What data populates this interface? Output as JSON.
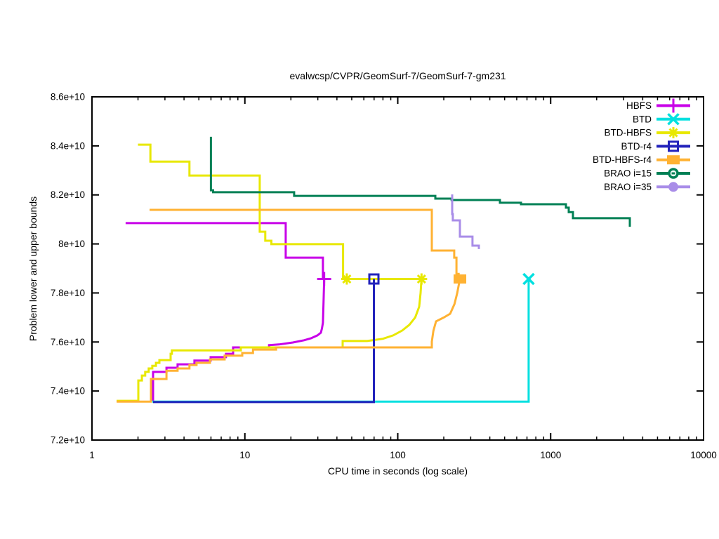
{
  "chart_data": {
    "type": "line",
    "title": "evalwcsp/CVPR/GeomSurf-7/GeomSurf-7-gm231",
    "xlabel": "CPU time in seconds (log scale)",
    "ylabel": "Problem lower and upper bounds",
    "x_scale": "log",
    "x_range": [
      1,
      10000
    ],
    "y_range_e10": [
      7.2,
      8.6
    ],
    "y_value_unit": "e+10",
    "grid": false,
    "legend_position": "top-right-inside",
    "x_ticks": [
      {
        "v": 1,
        "label": "1"
      },
      {
        "v": 10,
        "label": "10"
      },
      {
        "v": 100,
        "label": "100"
      },
      {
        "v": 1000,
        "label": "1000"
      },
      {
        "v": 10000,
        "label": "10000"
      }
    ],
    "y_ticks": [
      {
        "v": 7.2,
        "label": "7.2e+10"
      },
      {
        "v": 7.4,
        "label": "7.4e+10"
      },
      {
        "v": 7.6,
        "label": "7.6e+10"
      },
      {
        "v": 7.8,
        "label": "7.8e+10"
      },
      {
        "v": 8.0,
        "label": "8e+10"
      },
      {
        "v": 8.2,
        "label": "8.2e+10"
      },
      {
        "v": 8.4,
        "label": "8.4e+10"
      },
      {
        "v": 8.6,
        "label": "8.6e+10"
      }
    ],
    "series": [
      {
        "name": "HBFS",
        "color": "#c800e8",
        "marker": "plus",
        "segments": [
          [
            [
              1.66,
              8.085
            ],
            [
              18.5,
              8.085
            ],
            [
              18.5,
              7.944
            ],
            [
              32.4,
              7.944
            ],
            [
              32.4,
              7.857
            ]
          ],
          [
            [
              2.51,
              7.36
            ],
            [
              2.51,
              7.478
            ],
            [
              3.07,
              7.478
            ],
            [
              3.07,
              7.495
            ],
            [
              3.63,
              7.495
            ],
            [
              3.63,
              7.509
            ],
            [
              4.68,
              7.509
            ],
            [
              4.68,
              7.524
            ],
            [
              5.97,
              7.524
            ],
            [
              5.97,
              7.538
            ],
            [
              7.52,
              7.538
            ],
            [
              7.52,
              7.552
            ],
            [
              8.38,
              7.552
            ],
            [
              8.38,
              7.578
            ],
            [
              14.4,
              7.578
            ],
            [
              14.4,
              7.587
            ],
            [
              16.7,
              7.59
            ],
            [
              20.6,
              7.598
            ],
            [
              24.4,
              7.607
            ],
            [
              27.1,
              7.615
            ],
            [
              29.8,
              7.627
            ],
            [
              31.4,
              7.638
            ],
            [
              31.9,
              7.655
            ],
            [
              32.4,
              7.678
            ],
            [
              32.7,
              7.764
            ],
            [
              33,
              7.857
            ]
          ]
        ],
        "markers_at": [
          [
            33,
            7.857
          ]
        ]
      },
      {
        "name": "BTD",
        "color": "#00e0e0",
        "marker": "cross",
        "segments": [
          [
            [
              2.48,
              7.357
            ],
            [
              718,
              7.357
            ],
            [
              718,
              7.857
            ]
          ]
        ],
        "markers_at": [
          [
            718,
            7.857
          ]
        ]
      },
      {
        "name": "BTD-HBFS",
        "color": "#e8e800",
        "marker": "asterisk",
        "segments": [
          [
            [
              2.0,
              8.405
            ],
            [
              2.41,
              8.405
            ],
            [
              2.41,
              8.336
            ],
            [
              4.34,
              8.336
            ],
            [
              4.34,
              8.279
            ],
            [
              12.5,
              8.279
            ],
            [
              12.5,
              8.05
            ],
            [
              13.6,
              8.05
            ],
            [
              13.6,
              8.013
            ],
            [
              14.9,
              8.013
            ],
            [
              14.9,
              7.999
            ],
            [
              43.9,
              7.999
            ],
            [
              43.9,
              7.857
            ],
            [
              143,
              7.857
            ]
          ],
          [
            [
              1.45,
              7.36
            ],
            [
              2.01,
              7.36
            ],
            [
              2.01,
              7.443
            ],
            [
              2.12,
              7.443
            ],
            [
              2.12,
              7.463
            ],
            [
              2.23,
              7.463
            ],
            [
              2.23,
              7.478
            ],
            [
              2.35,
              7.478
            ],
            [
              2.35,
              7.492
            ],
            [
              2.48,
              7.492
            ],
            [
              2.48,
              7.503
            ],
            [
              2.62,
              7.503
            ],
            [
              2.62,
              7.515
            ],
            [
              2.76,
              7.515
            ],
            [
              2.76,
              7.526
            ],
            [
              3.27,
              7.526
            ],
            [
              3.27,
              7.552
            ],
            [
              3.33,
              7.552
            ],
            [
              3.33,
              7.566
            ],
            [
              9.41,
              7.566
            ],
            [
              9.41,
              7.578
            ],
            [
              43.6,
              7.578
            ],
            [
              43.6,
              7.604
            ],
            [
              63.1,
              7.604
            ],
            [
              80,
              7.613
            ],
            [
              93.3,
              7.627
            ],
            [
              107,
              7.647
            ],
            [
              119,
              7.67
            ],
            [
              130,
              7.7
            ],
            [
              138,
              7.744
            ],
            [
              141,
              7.8
            ],
            [
              143,
              7.857
            ]
          ]
        ],
        "markers_at": [
          [
            46.4,
            7.857
          ],
          [
            143,
            7.857
          ]
        ]
      },
      {
        "name": "BTD-r4",
        "color": "#2222bb",
        "marker": "square-open",
        "segments": [
          [
            [
              2.51,
              7.355
            ],
            [
              69.8,
              7.355
            ],
            [
              69.8,
              7.857
            ]
          ]
        ],
        "markers_at": [
          [
            69.8,
            7.857
          ]
        ]
      },
      {
        "name": "BTD-HBFS-r4",
        "color": "#ffb233",
        "marker": "square-filled",
        "segments": [
          [
            [
              2.38,
              8.139
            ],
            [
              167,
              8.139
            ],
            [
              167,
              7.973
            ],
            [
              234,
              7.973
            ],
            [
              234,
              7.944
            ],
            [
              242,
              7.944
            ],
            [
              242,
              7.878
            ],
            [
              250,
              7.878
            ],
            [
              250,
              7.857
            ],
            [
              255,
              7.857
            ]
          ],
          [
            [
              1.45,
              7.357
            ],
            [
              2.43,
              7.357
            ],
            [
              2.43,
              7.449
            ],
            [
              3.07,
              7.449
            ],
            [
              3.07,
              7.483
            ],
            [
              3.63,
              7.483
            ],
            [
              3.63,
              7.492
            ],
            [
              4.34,
              7.492
            ],
            [
              4.34,
              7.506
            ],
            [
              4.83,
              7.506
            ],
            [
              4.83,
              7.515
            ],
            [
              5.91,
              7.515
            ],
            [
              5.91,
              7.529
            ],
            [
              7.37,
              7.529
            ],
            [
              7.37,
              7.544
            ],
            [
              9.61,
              7.544
            ],
            [
              9.61,
              7.555
            ],
            [
              11.3,
              7.555
            ],
            [
              11.3,
              7.569
            ],
            [
              16,
              7.569
            ],
            [
              16,
              7.578
            ],
            [
              167,
              7.578
            ],
            [
              167,
              7.601
            ],
            [
              171,
              7.645
            ],
            [
              178,
              7.684
            ],
            [
              200,
              7.7
            ],
            [
              220,
              7.715
            ],
            [
              235,
              7.755
            ],
            [
              245,
              7.8
            ],
            [
              250,
              7.83
            ],
            [
              255,
              7.857
            ]
          ]
        ],
        "markers_at": [
          [
            255,
            7.857
          ]
        ]
      },
      {
        "name": "BRAO i=15",
        "color": "#008055",
        "marker": "circle-open",
        "segments": [
          [
            [
              6,
              8.437
            ],
            [
              6,
              8.219
            ],
            [
              6.2,
              8.219
            ],
            [
              6.2,
              8.211
            ],
            [
              21,
              8.211
            ],
            [
              21,
              8.196
            ],
            [
              22.5,
              8.196
            ],
            [
              176,
              8.196
            ],
            [
              176,
              8.185
            ],
            [
              225,
              8.185
            ],
            [
              225,
              8.179
            ],
            [
              466,
              8.179
            ],
            [
              466,
              8.168
            ],
            [
              640,
              8.168
            ],
            [
              640,
              8.162
            ],
            [
              1259,
              8.162
            ],
            [
              1259,
              8.148
            ],
            [
              1313,
              8.148
            ],
            [
              1313,
              8.13
            ],
            [
              1399,
              8.13
            ],
            [
              1399,
              8.105
            ],
            [
              3294,
              8.105
            ],
            [
              3294,
              8.07
            ]
          ]
        ],
        "markers_at": []
      },
      {
        "name": "BRAO i=35",
        "color": "#a98de8",
        "marker": "circle-filled",
        "segments": [
          [
            [
              227,
              8.202
            ],
            [
              227,
              8.122
            ],
            [
              229,
              8.122
            ],
            [
              229,
              8.096
            ],
            [
              255,
              8.096
            ],
            [
              255,
              8.03
            ],
            [
              308,
              8.03
            ],
            [
              308,
              7.993
            ],
            [
              339,
              7.993
            ],
            [
              339,
              7.979
            ]
          ]
        ],
        "markers_at": []
      }
    ]
  }
}
